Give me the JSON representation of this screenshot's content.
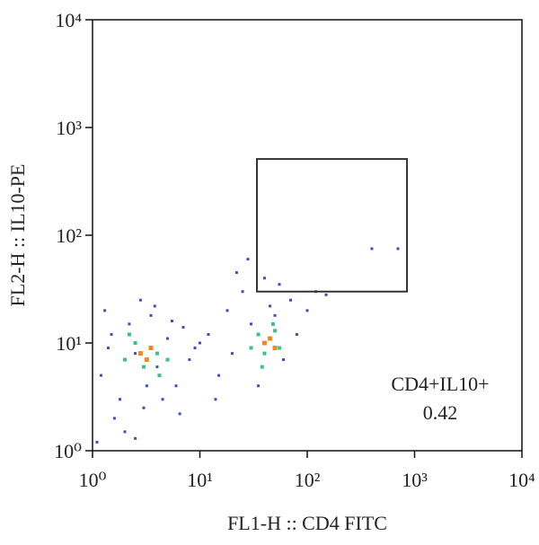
{
  "chart_data": {
    "type": "scatter",
    "x_label": "FL1-H :: CD4 FITC",
    "y_label": "FL2-H :: IL10-PE",
    "log_x": true,
    "log_y": true,
    "xlim": [
      1,
      10000
    ],
    "ylim": [
      1,
      10000
    ],
    "xticks": [
      {
        "value": 1,
        "label": "10⁰"
      },
      {
        "value": 10,
        "label": "10¹"
      },
      {
        "value": 100,
        "label": "10²"
      },
      {
        "value": 1000,
        "label": "10³"
      },
      {
        "value": 10000,
        "label": "10⁴"
      }
    ],
    "yticks": [
      {
        "value": 1,
        "label": "10⁰"
      },
      {
        "value": 10,
        "label": "10¹"
      },
      {
        "value": 100,
        "label": "10²"
      },
      {
        "value": 1000,
        "label": "10³"
      },
      {
        "value": 10000,
        "label": "10⁴"
      }
    ],
    "series": [
      {
        "color": "#3c4fc2",
        "x": [
          1.2,
          1.5,
          1.8,
          2.2,
          2.5,
          3,
          3.5,
          4,
          5,
          6,
          7,
          8,
          1.3,
          1.6,
          2,
          2.8,
          3.2,
          4.5,
          5.5,
          9,
          12,
          15,
          18,
          20,
          25,
          30,
          35,
          40,
          45,
          50,
          60,
          70,
          80,
          100,
          120,
          150,
          22,
          28,
          55,
          400,
          700,
          1.1,
          1.4,
          2.5,
          3.8,
          6.5,
          10,
          14
        ],
        "y": [
          5,
          12,
          3,
          15,
          8,
          2.5,
          18,
          6,
          11,
          4,
          14,
          7,
          20,
          2,
          1.5,
          25,
          4,
          3,
          16,
          9,
          12,
          5,
          20,
          8,
          30,
          15,
          4,
          40,
          22,
          18,
          7,
          25,
          12,
          20,
          30,
          28,
          45,
          60,
          35,
          75,
          75,
          1.2,
          9,
          1.3,
          22,
          2.2,
          10,
          3
        ]
      },
      {
        "color": "#3cc08c",
        "x": [
          2,
          2.5,
          3,
          3.5,
          4,
          5,
          2.2,
          4.2,
          30,
          35,
          40,
          45,
          50,
          55,
          38,
          48
        ],
        "y": [
          7,
          10,
          6,
          9,
          8,
          7,
          12,
          5,
          9,
          12,
          8,
          11,
          13,
          9,
          6,
          15
        ]
      },
      {
        "color": "#f08a1c",
        "x": [
          2.8,
          3.2,
          3.5,
          40,
          45,
          50
        ],
        "y": [
          8,
          7,
          9,
          10,
          11,
          9
        ]
      }
    ],
    "gate": {
      "x": [
        34,
        850
      ],
      "y": [
        30,
        510
      ]
    },
    "gate_label": "CD4+IL10+",
    "gate_value": 0.42
  }
}
